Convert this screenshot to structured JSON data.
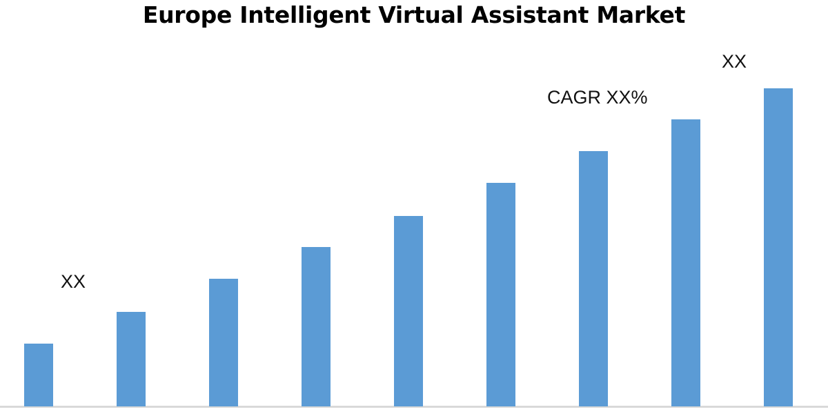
{
  "chart_data": {
    "type": "bar",
    "title": "Europe Intelligent Virtual Assistant Market",
    "xlabel": "",
    "ylabel": "",
    "values": [
      91,
      137,
      185,
      231,
      276,
      324,
      370,
      416,
      461
    ],
    "ylim": [
      0,
      470
    ],
    "grid": false,
    "bar_color": "#5b9bd5",
    "axis_color": "#d9d9d9",
    "annotations": {
      "start_label": "XX",
      "cagr_label": "CAGR XX%",
      "end_label": "XX"
    }
  }
}
